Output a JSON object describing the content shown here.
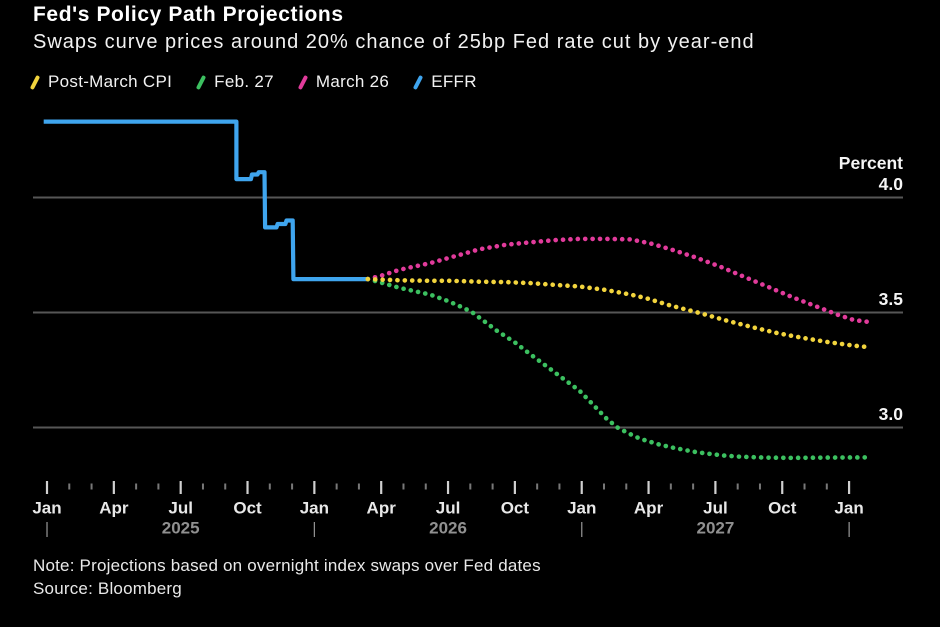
{
  "header": {
    "title": "Fed's Policy Path Projections",
    "subtitle": "Swaps curve prices around 20% chance of 25bp Fed rate cut by year-end"
  },
  "legend": {
    "items": [
      {
        "label": "Post-March CPI",
        "color": "#f2d43d"
      },
      {
        "label": "Feb. 27",
        "color": "#3cc060"
      },
      {
        "label": "March 26",
        "color": "#e13b9b"
      },
      {
        "label": "EFFR",
        "color": "#3fa5ee"
      }
    ]
  },
  "chart_data": {
    "type": "line",
    "x_unit": "months since Jan 2025",
    "x_axis": {
      "month_labels": [
        "Jan",
        "Apr",
        "Jul",
        "Oct",
        "Jan",
        "Apr",
        "Jul",
        "Oct",
        "Jan",
        "Apr",
        "Jul",
        "Oct",
        "Jan"
      ],
      "month_label_positions": [
        0,
        3,
        6,
        9,
        12,
        15,
        18,
        21,
        24,
        27,
        30,
        33,
        36
      ],
      "minor_tick_months": [
        1,
        2,
        4,
        5,
        7,
        8,
        10,
        11,
        13,
        14,
        16,
        17,
        19,
        20,
        22,
        23,
        25,
        26,
        28,
        29,
        31,
        32,
        34,
        35
      ],
      "year_labels": [
        {
          "text": "2025",
          "month": 6
        },
        {
          "text": "2026",
          "month": 18
        },
        {
          "text": "2027",
          "month": 30
        }
      ],
      "jan_marker_glyph": "|",
      "jan_marker_months": [
        0,
        12,
        24,
        36
      ]
    },
    "y_axis": {
      "unit_label": "Percent",
      "ticks": [
        4.0,
        3.5,
        3.0
      ],
      "range": [
        2.72,
        4.45
      ],
      "grid": true,
      "side": "right"
    },
    "series": [
      {
        "name": "EFFR",
        "color": "#3fa5ee",
        "style": "solid",
        "points": [
          [
            -0.15,
            4.33
          ],
          [
            8.5,
            4.33
          ],
          [
            8.5,
            4.08
          ],
          [
            9.15,
            4.08
          ],
          [
            9.2,
            4.1
          ],
          [
            9.45,
            4.1
          ],
          [
            9.5,
            4.11
          ],
          [
            9.76,
            4.11
          ],
          [
            9.79,
            3.87
          ],
          [
            10.3,
            3.87
          ],
          [
            10.35,
            3.885
          ],
          [
            10.7,
            3.885
          ],
          [
            10.75,
            3.9
          ],
          [
            11.03,
            3.9
          ],
          [
            11.06,
            3.645
          ],
          [
            14.45,
            3.645
          ]
        ]
      },
      {
        "name": "March 26",
        "color": "#e13b9b",
        "style": "dotted",
        "points": [
          [
            14.4,
            3.645
          ],
          [
            15.0,
            3.66
          ],
          [
            15.8,
            3.685
          ],
          [
            17.2,
            3.715
          ],
          [
            18.5,
            3.75
          ],
          [
            19.4,
            3.775
          ],
          [
            20.6,
            3.795
          ],
          [
            21.7,
            3.805
          ],
          [
            22.8,
            3.815
          ],
          [
            23.9,
            3.82
          ],
          [
            25.1,
            3.82
          ],
          [
            26.2,
            3.818
          ],
          [
            27.1,
            3.8
          ],
          [
            28.0,
            3.775
          ],
          [
            29.1,
            3.74
          ],
          [
            30.2,
            3.7
          ],
          [
            31.3,
            3.655
          ],
          [
            32.4,
            3.61
          ],
          [
            33.5,
            3.565
          ],
          [
            34.7,
            3.52
          ],
          [
            35.5,
            3.49
          ],
          [
            36.2,
            3.468
          ],
          [
            36.8,
            3.46
          ]
        ]
      },
      {
        "name": "Feb. 27",
        "color": "#3cc060",
        "style": "dotted",
        "points": [
          [
            14.4,
            3.645
          ],
          [
            15.0,
            3.63
          ],
          [
            15.8,
            3.608
          ],
          [
            17.2,
            3.578
          ],
          [
            18.0,
            3.55
          ],
          [
            18.7,
            3.52
          ],
          [
            19.1,
            3.5
          ],
          [
            20.2,
            3.42
          ],
          [
            21.0,
            3.37
          ],
          [
            21.7,
            3.318
          ],
          [
            22.4,
            3.268
          ],
          [
            23.2,
            3.21
          ],
          [
            23.9,
            3.16
          ],
          [
            24.5,
            3.1
          ],
          [
            25.1,
            3.04
          ],
          [
            25.6,
            3.0
          ],
          [
            26.1,
            2.975
          ],
          [
            26.6,
            2.952
          ],
          [
            27.4,
            2.928
          ],
          [
            28.1,
            2.912
          ],
          [
            29.0,
            2.895
          ],
          [
            29.6,
            2.887
          ],
          [
            30.4,
            2.878
          ],
          [
            31.1,
            2.873
          ],
          [
            32.2,
            2.869
          ],
          [
            33.5,
            2.868
          ],
          [
            35.0,
            2.869
          ],
          [
            36.8,
            2.87
          ]
        ]
      },
      {
        "name": "Post-March CPI",
        "color": "#f2d43d",
        "style": "dotted",
        "points": [
          [
            14.4,
            3.645
          ],
          [
            15.8,
            3.64
          ],
          [
            17.2,
            3.638
          ],
          [
            18.1,
            3.638
          ],
          [
            19.4,
            3.634
          ],
          [
            20.6,
            3.632
          ],
          [
            21.7,
            3.628
          ],
          [
            22.8,
            3.62
          ],
          [
            23.9,
            3.613
          ],
          [
            25.1,
            3.598
          ],
          [
            26.2,
            3.578
          ],
          [
            26.9,
            3.562
          ],
          [
            28.0,
            3.53
          ],
          [
            29.4,
            3.495
          ],
          [
            30.6,
            3.462
          ],
          [
            31.7,
            3.435
          ],
          [
            32.8,
            3.41
          ],
          [
            33.9,
            3.39
          ],
          [
            35.0,
            3.372
          ],
          [
            36.2,
            3.356
          ],
          [
            36.8,
            3.35
          ]
        ]
      }
    ],
    "title": "Fed's Policy Path Projections",
    "subtitle": "Swaps curve prices around 20% chance of 25bp Fed rate cut by year-end",
    "legend_position": "top-left"
  },
  "footer": {
    "note": "Note: Projections based on overnight index swaps over Fed dates",
    "source": "Source: Bloomberg"
  },
  "colors": {
    "background": "#000000",
    "gridline": "#565656",
    "axis_major_tick": "#d0d0d0",
    "axis_minor_tick": "#787878",
    "month_label": "#e8e8e8",
    "year_label": "#909090",
    "y_label": "#f5f5f5"
  }
}
